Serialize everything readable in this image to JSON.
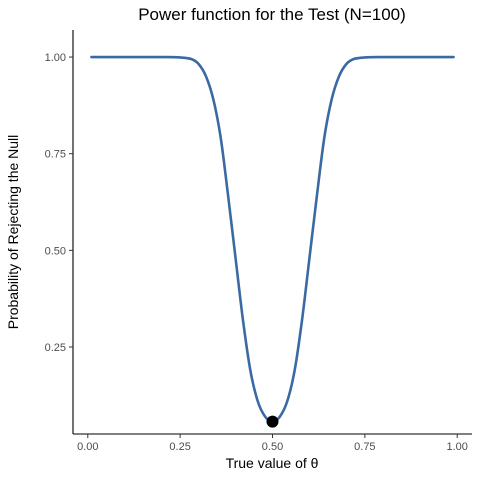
{
  "chart_data": {
    "type": "line",
    "title": "Power function for the Test (N=100)",
    "xlabel": "True value of  θ",
    "ylabel": "Probability of Rejecting the Null",
    "xlim": [
      -0.04,
      1.04
    ],
    "ylim": [
      0.025,
      1.07
    ],
    "x_ticks": [
      0.0,
      0.25,
      0.5,
      0.75,
      1.0
    ],
    "x_tick_labels": [
      "0.00",
      "0.25",
      "0.50",
      "0.75",
      "1.00"
    ],
    "y_ticks": [
      0.25,
      0.5,
      0.75,
      1.0
    ],
    "y_tick_labels": [
      "0.25",
      "0.50",
      "0.75",
      "1.00"
    ],
    "grid": false,
    "series": [
      {
        "color": "#3b6aa3",
        "x": [
          0.01,
          0.05,
          0.1,
          0.15,
          0.2,
          0.25,
          0.28,
          0.3,
          0.32,
          0.34,
          0.36,
          0.38,
          0.4,
          0.42,
          0.44,
          0.46,
          0.48,
          0.5,
          0.52,
          0.54,
          0.56,
          0.58,
          0.6,
          0.62,
          0.64,
          0.66,
          0.68,
          0.7,
          0.72,
          0.75,
          0.8,
          0.85,
          0.9,
          0.95,
          0.99
        ],
        "y": [
          1.0,
          1.0,
          1.0,
          1.0,
          1.0,
          0.999,
          0.995,
          0.982,
          0.95,
          0.89,
          0.79,
          0.64,
          0.48,
          0.32,
          0.19,
          0.11,
          0.07,
          0.057,
          0.07,
          0.11,
          0.19,
          0.32,
          0.48,
          0.64,
          0.79,
          0.89,
          0.95,
          0.982,
          0.995,
          0.999,
          1.0,
          1.0,
          1.0,
          1.0,
          1.0
        ]
      }
    ],
    "points": [
      {
        "x": 0.5,
        "y": 0.057,
        "color": "#000000"
      }
    ]
  }
}
